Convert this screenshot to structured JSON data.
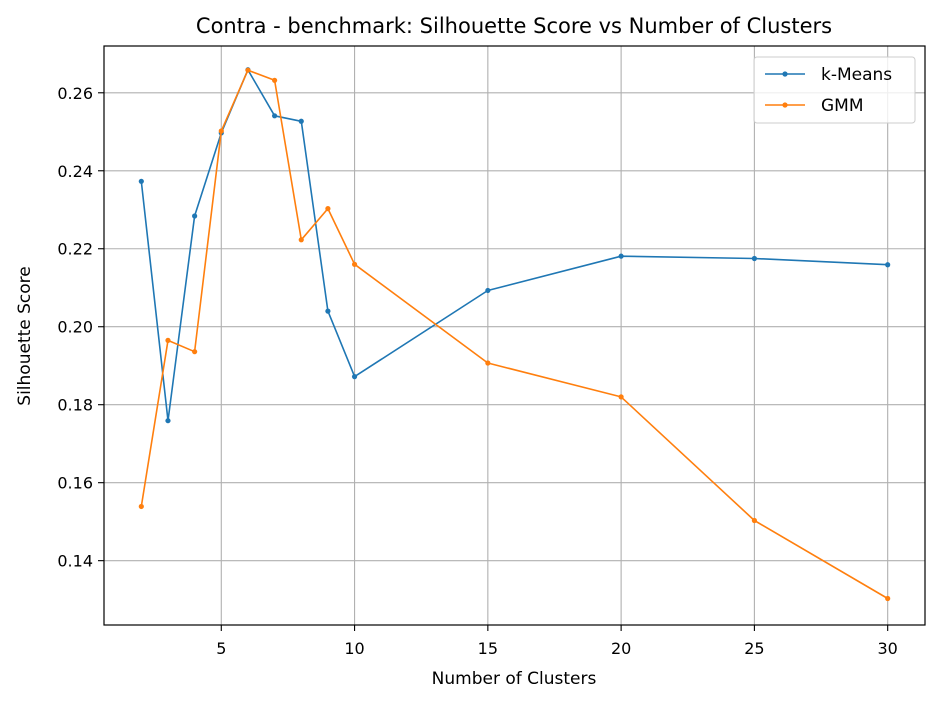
{
  "chart_data": {
    "type": "line",
    "title": "Contra - benchmark: Silhouette Score vs Number of Clusters",
    "xlabel": "Number of Clusters",
    "ylabel": "Silhouette Score",
    "x": [
      2,
      3,
      4,
      5,
      6,
      7,
      8,
      9,
      10,
      15,
      20,
      25,
      30
    ],
    "xlim": [
      0.6,
      31.4
    ],
    "ylim": [
      0.1235,
      0.272
    ],
    "xticks": [
      5,
      10,
      15,
      20,
      25,
      30
    ],
    "xtick_labels": [
      "5",
      "10",
      "15",
      "20",
      "25",
      "30"
    ],
    "yticks": [
      0.14,
      0.16,
      0.18,
      0.2,
      0.22,
      0.24,
      0.26
    ],
    "ytick_labels": [
      "0.14",
      "0.16",
      "0.18",
      "0.20",
      "0.22",
      "0.24",
      "0.26"
    ],
    "grid": true,
    "legend_position": "top-right",
    "series": [
      {
        "name": "k-Means",
        "color": "#1f77b4",
        "values": [
          0.2373,
          0.1759,
          0.2284,
          0.2497,
          0.2659,
          0.2541,
          0.2527,
          0.204,
          0.1872,
          0.2093,
          0.2181,
          0.2175,
          0.2159
        ]
      },
      {
        "name": "GMM",
        "color": "#ff7f0e",
        "values": [
          0.1539,
          0.1965,
          0.1936,
          0.2502,
          0.2658,
          0.2632,
          0.2223,
          0.2303,
          0.216,
          0.1907,
          0.182,
          0.1503,
          0.1303
        ]
      }
    ]
  }
}
